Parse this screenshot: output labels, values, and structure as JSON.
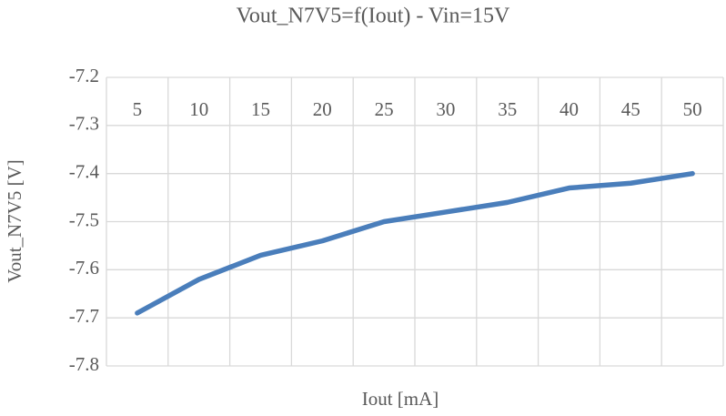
{
  "chart_data": {
    "type": "line",
    "title": "Vout_N7V5=f(Iout) - Vin=15V",
    "x_label": "Iout [mA]",
    "y_label": "Vout_N7V5 [V]",
    "categories": [
      5,
      10,
      15,
      20,
      25,
      30,
      35,
      40,
      45,
      50
    ],
    "values": [
      -7.69,
      -7.62,
      -7.57,
      -7.54,
      -7.5,
      -7.48,
      -7.46,
      -7.43,
      -7.42,
      -7.4
    ],
    "color": "#4a7ebb",
    "ylim": [
      -7.8,
      -7.2
    ],
    "yticks": [
      -7.8,
      -7.7,
      -7.6,
      -7.5,
      -7.4,
      -7.3,
      -7.2
    ],
    "grid": true
  }
}
